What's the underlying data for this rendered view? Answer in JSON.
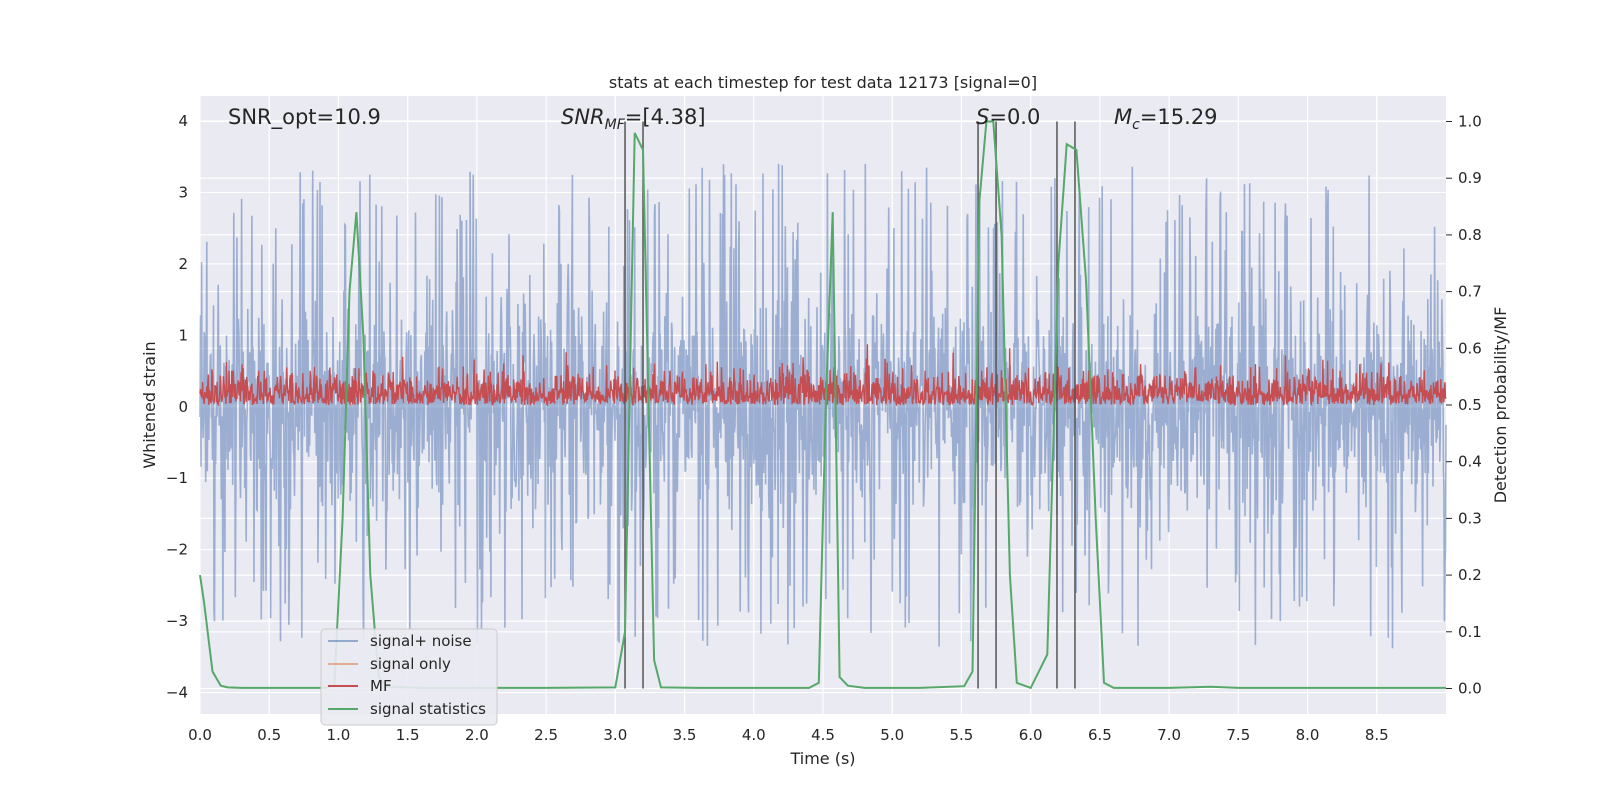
{
  "chart_data": {
    "type": "line",
    "title": "stats at each timestep for test data 12173 [signal=0]",
    "xlabel": "Time (s)",
    "ylabel": "Whitened strain",
    "y2label": "Detection probability/MF",
    "xlim": [
      0.0,
      9.0
    ],
    "ylim": [
      -4.3,
      4.35
    ],
    "y2lim": [
      -0.045,
      1.045
    ],
    "xticks": [
      0.0,
      0.5,
      1.0,
      1.5,
      2.0,
      2.5,
      3.0,
      3.5,
      4.0,
      4.5,
      5.0,
      5.5,
      6.0,
      6.5,
      7.0,
      7.5,
      8.0,
      8.5
    ],
    "xtick_labels": [
      "0.0",
      "0.5",
      "1.0",
      "1.5",
      "2.0",
      "2.5",
      "3.0",
      "3.5",
      "4.0",
      "4.5",
      "5.0",
      "5.5",
      "6.0",
      "6.5",
      "7.0",
      "7.5",
      "8.0",
      "8.5"
    ],
    "yticks": [
      -4,
      -3,
      -2,
      -1,
      0,
      1,
      2,
      3,
      4
    ],
    "ytick_labels": [
      "−4",
      "−3",
      "−2",
      "−1",
      "0",
      "1",
      "2",
      "3",
      "4"
    ],
    "y2ticks": [
      0.0,
      0.1,
      0.2,
      0.3,
      0.4,
      0.5,
      0.6,
      0.7,
      0.8,
      0.9,
      1.0
    ],
    "y2tick_labels": [
      "0.0",
      "0.1",
      "0.2",
      "0.3",
      "0.4",
      "0.5",
      "0.6",
      "0.7",
      "0.8",
      "0.9",
      "1.0"
    ],
    "grid": true,
    "legend_position": "lower-left",
    "annotations": {
      "snr_opt": "SNR_opt=10.9",
      "snr_mf_main": "SNR",
      "snr_mf_sub": "MF",
      "snr_mf_value": "=[4.38]",
      "s_main": "S",
      "s_value": "=0.0",
      "mc_main": "M",
      "mc_sub": "c",
      "mc_value": "=15.29"
    },
    "series": [
      {
        "name": "signal+ noise",
        "axis": "left",
        "color": "#4c72b0",
        "description_level": "dense noise, roughly within ±2.5, peaks up to about ±3.3",
        "envelope_typical": 2.4,
        "envelope_max": 3.4
      },
      {
        "name": "signal only",
        "axis": "left",
        "color": "#dd8452",
        "values": []
      },
      {
        "name": "MF",
        "axis": "right",
        "color": "#c44e52",
        "range": [
          0.5,
          0.61
        ]
      },
      {
        "name": "signal statistics",
        "axis": "right",
        "color": "#55a868",
        "x": [
          0.0,
          0.03,
          0.09,
          0.15,
          0.2,
          0.3,
          0.6,
          0.9,
          0.97,
          1.03,
          1.08,
          1.13,
          1.18,
          1.23,
          1.29,
          1.35,
          1.6,
          2.0,
          2.5,
          3.0,
          3.07,
          3.14,
          3.2,
          3.28,
          3.33,
          3.6,
          4.0,
          4.4,
          4.47,
          4.52,
          4.57,
          4.62,
          4.68,
          4.8,
          5.2,
          5.52,
          5.58,
          5.63,
          5.68,
          5.73,
          5.79,
          5.85,
          5.9,
          6.0,
          6.12,
          6.2,
          6.26,
          6.33,
          6.4,
          6.47,
          6.53,
          6.6,
          7.0,
          7.3,
          7.5,
          8.0,
          8.5,
          9.0
        ],
        "values": [
          0.2,
          0.15,
          0.03,
          0.005,
          0.002,
          0.001,
          0.001,
          0.001,
          0.005,
          0.3,
          0.7,
          0.84,
          0.62,
          0.2,
          0.02,
          0.003,
          0.001,
          0.001,
          0.001,
          0.002,
          0.1,
          0.98,
          0.95,
          0.05,
          0.002,
          0.001,
          0.001,
          0.001,
          0.01,
          0.5,
          0.84,
          0.02,
          0.005,
          0.001,
          0.001,
          0.004,
          0.03,
          0.86,
          1.0,
          1.0,
          0.8,
          0.2,
          0.01,
          0.001,
          0.06,
          0.75,
          0.96,
          0.95,
          0.72,
          0.3,
          0.01,
          0.001,
          0.001,
          0.003,
          0.001,
          0.001,
          0.001,
          0.001
        ]
      }
    ],
    "vertical_lines_x": [
      3.07,
      3.2,
      5.62,
      5.75,
      6.19,
      6.32
    ],
    "legend_entries": [
      "signal+ noise",
      "signal only",
      "MF",
      "signal statistics"
    ]
  },
  "colors": {
    "plot_background": "#eaeaf2",
    "grid": "#ffffff",
    "vline": "#555555"
  }
}
